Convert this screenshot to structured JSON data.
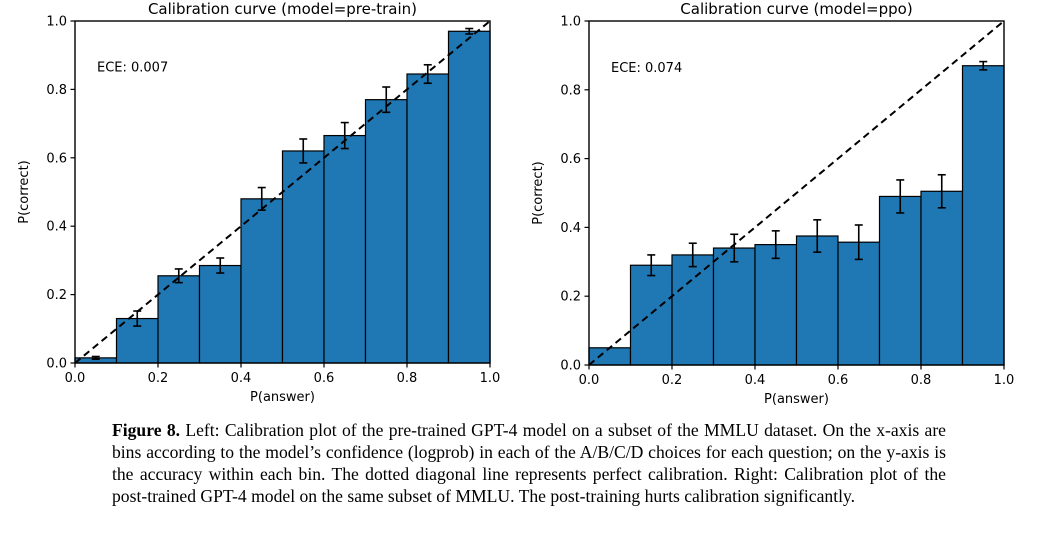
{
  "figure": {
    "caption_label": "Figure 8.",
    "caption_text": "Left: Calibration plot of the pre-trained GPT-4 model on a subset of the MMLU dataset. On the x-axis are bins according to the model’s confidence (logprob) in each of the A/B/C/D choices for each question; on the y-axis is the accuracy within each bin. The dotted diagonal line represents perfect calibration. Right: Calibration plot of the post-trained GPT-4 model on the same subset of MMLU. The post-training hurts calibration significantly."
  },
  "chart_data": [
    {
      "type": "bar",
      "title": "Calibration curve (model=pre-train)",
      "annotation": "ECE: 0.007",
      "xlabel": "P(answer)",
      "ylabel": "P(correct)",
      "xlim": [
        0.0,
        1.0
      ],
      "ylim": [
        0.0,
        1.0
      ],
      "xticks": [
        0.0,
        0.2,
        0.4,
        0.6,
        0.8,
        1.0
      ],
      "yticks": [
        0.0,
        0.2,
        0.4,
        0.6,
        0.8,
        1.0
      ],
      "bin_edges": [
        0.0,
        0.1,
        0.2,
        0.3,
        0.4,
        0.5,
        0.6,
        0.7,
        0.8,
        0.9,
        1.0
      ],
      "values": [
        0.015,
        0.13,
        0.255,
        0.285,
        0.48,
        0.62,
        0.665,
        0.77,
        0.845,
        0.97
      ],
      "errors": [
        0.004,
        0.022,
        0.02,
        0.022,
        0.033,
        0.035,
        0.038,
        0.037,
        0.027,
        0.008
      ],
      "diagonal_line": "perfect calibration y=x, black dashed",
      "bar_color": "#1f77b4",
      "bar_edge_color": "#000000",
      "grid": false,
      "legend": "none"
    },
    {
      "type": "bar",
      "title": "Calibration curve (model=ppo)",
      "annotation": "ECE: 0.074",
      "xlabel": "P(answer)",
      "ylabel": "P(correct)",
      "xlim": [
        0.0,
        1.0
      ],
      "ylim": [
        0.0,
        1.0
      ],
      "xticks": [
        0.0,
        0.2,
        0.4,
        0.6,
        0.8,
        1.0
      ],
      "yticks": [
        0.0,
        0.2,
        0.4,
        0.6,
        0.8,
        1.0
      ],
      "bin_edges": [
        0.0,
        0.1,
        0.2,
        0.3,
        0.4,
        0.5,
        0.6,
        0.7,
        0.8,
        0.9,
        1.0
      ],
      "values": [
        0.05,
        0.29,
        0.32,
        0.34,
        0.35,
        0.375,
        0.357,
        0.49,
        0.505,
        0.87
      ],
      "errors": [
        0,
        0.03,
        0.034,
        0.04,
        0.04,
        0.047,
        0.05,
        0.048,
        0.048,
        0.012
      ],
      "diagonal_line": "perfect calibration y=x, black dashed",
      "bar_color": "#1f77b4",
      "bar_edge_color": "#000000",
      "grid": false,
      "legend": "none"
    }
  ]
}
